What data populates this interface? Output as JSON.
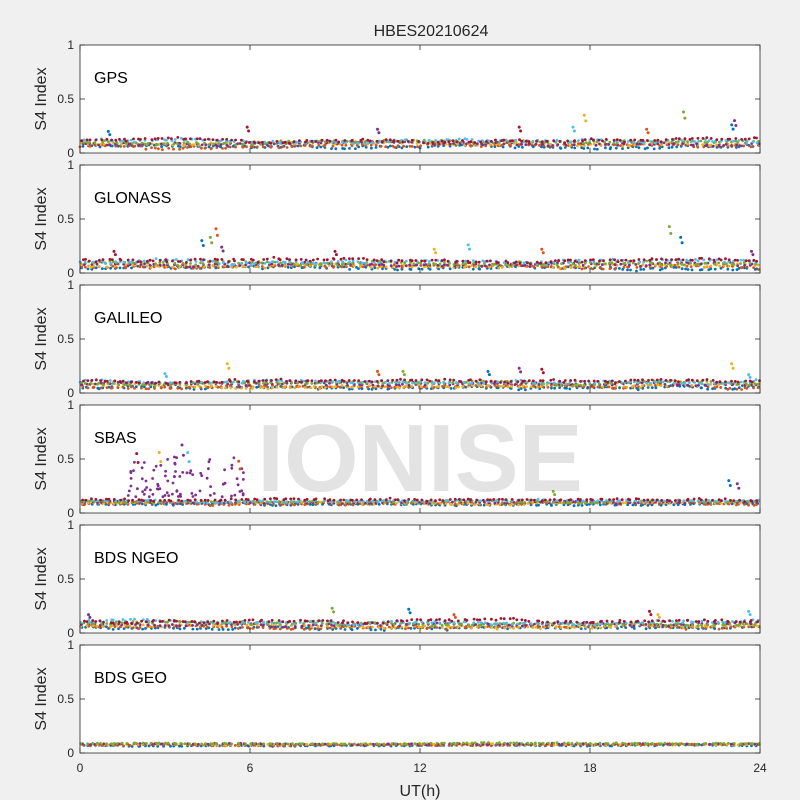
{
  "title": "HBES20210624",
  "watermark": "IONISE",
  "xlabel": "UT(h)",
  "xticks": [
    "0",
    "6",
    "12",
    "18",
    "24"
  ],
  "xlim": [
    0,
    24
  ],
  "colors": {
    "figure_background": "#f0f0f0",
    "axes_background": "#ffffff",
    "watermark": "#e3e3e3",
    "palette": [
      "#0072bd",
      "#d95319",
      "#edb120",
      "#7e2f8e",
      "#77ac30",
      "#4dbeee",
      "#a2142f"
    ]
  },
  "chart_data": [
    {
      "type": "scatter",
      "panel_label": "GPS",
      "ylabel": "S4 Index",
      "ylim": [
        0,
        1
      ],
      "yticks": [
        "0",
        "0.5",
        "1"
      ],
      "series_count": 7,
      "baseline": 0.09,
      "spread": 0.03,
      "spikes": [
        [
          1.0,
          0.2
        ],
        [
          10.5,
          0.22
        ],
        [
          15.5,
          0.24
        ],
        [
          17.8,
          0.35
        ],
        [
          17.4,
          0.24
        ],
        [
          20.0,
          0.22
        ],
        [
          21.3,
          0.38
        ],
        [
          23.0,
          0.26
        ],
        [
          23.1,
          0.3
        ],
        [
          5.9,
          0.24
        ]
      ]
    },
    {
      "type": "scatter",
      "panel_label": "GLONASS",
      "ylabel": "S4 Index",
      "ylim": [
        0,
        1
      ],
      "yticks": [
        "0",
        "0.5",
        "1"
      ],
      "series_count": 7,
      "baseline": 0.08,
      "spread": 0.035,
      "spikes": [
        [
          4.8,
          0.41
        ],
        [
          4.6,
          0.33
        ],
        [
          4.3,
          0.3
        ],
        [
          5.0,
          0.24
        ],
        [
          1.2,
          0.2
        ],
        [
          12.5,
          0.22
        ],
        [
          13.7,
          0.26
        ],
        [
          16.3,
          0.22
        ],
        [
          20.8,
          0.43
        ],
        [
          21.2,
          0.33
        ],
        [
          23.7,
          0.2
        ],
        [
          9.0,
          0.2
        ]
      ]
    },
    {
      "type": "scatter",
      "panel_label": "GALILEO",
      "ylabel": "S4 Index",
      "ylim": [
        0,
        1
      ],
      "yticks": [
        "0",
        "0.5",
        "1"
      ],
      "series_count": 7,
      "baseline": 0.08,
      "spread": 0.03,
      "spikes": [
        [
          5.2,
          0.27
        ],
        [
          3.0,
          0.18
        ],
        [
          10.5,
          0.2
        ],
        [
          11.4,
          0.2
        ],
        [
          14.4,
          0.2
        ],
        [
          15.5,
          0.23
        ],
        [
          16.3,
          0.22
        ],
        [
          23.0,
          0.27
        ],
        [
          23.6,
          0.17
        ]
      ]
    },
    {
      "type": "scatter",
      "panel_label": "SBAS",
      "ylabel": "S4 Index",
      "ylim": [
        0,
        1
      ],
      "yticks": [
        "0",
        "0.5",
        "1"
      ],
      "series_count": 7,
      "baseline": 0.1,
      "spread": 0.02,
      "burst": {
        "x_from": 1.7,
        "x_to": 5.8,
        "y_from": 0.15,
        "y_to": 0.62
      },
      "spikes": [
        [
          3.6,
          0.63
        ],
        [
          2.0,
          0.55
        ],
        [
          2.8,
          0.56
        ],
        [
          3.8,
          0.56
        ],
        [
          5.6,
          0.48
        ],
        [
          16.7,
          0.2
        ],
        [
          22.9,
          0.3
        ],
        [
          23.2,
          0.27
        ]
      ]
    },
    {
      "type": "scatter",
      "panel_label": "BDS NGEO",
      "ylabel": "S4 Index",
      "ylim": [
        0,
        1
      ],
      "yticks": [
        "0",
        "0.5",
        "1"
      ],
      "series_count": 7,
      "baseline": 0.08,
      "spread": 0.03,
      "spikes": [
        [
          8.9,
          0.23
        ],
        [
          11.6,
          0.22
        ],
        [
          0.3,
          0.17
        ],
        [
          20.1,
          0.2
        ],
        [
          20.4,
          0.17
        ],
        [
          23.6,
          0.2
        ],
        [
          13.2,
          0.17
        ]
      ]
    },
    {
      "type": "scatter",
      "panel_label": "BDS GEO",
      "ylabel": "S4 Index",
      "ylim": [
        0,
        1
      ],
      "yticks": [
        "0",
        "0.5",
        "1"
      ],
      "series_count": 5,
      "baseline": 0.08,
      "spread": 0.012,
      "spikes": []
    }
  ]
}
